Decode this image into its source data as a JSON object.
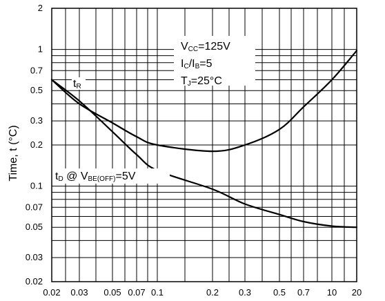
{
  "chart_data": {
    "type": "line",
    "title": "",
    "xlabel": "",
    "ylabel": "Time, t (°C)",
    "xscale": "categorical-log-like",
    "yscale": "log",
    "ylim": [
      0.02,
      2
    ],
    "grid": true,
    "x_ticks": [
      "0.02",
      "0.03",
      "0.05",
      "0.07",
      "0.1",
      "0.2",
      "0.3",
      "0.5",
      "0.7",
      "10",
      "20"
    ],
    "y_ticks": [
      "0.02",
      "0.03",
      "0.05",
      "0.07",
      "0.1",
      "0.2",
      "0.3",
      "0.5",
      "0.7",
      "1",
      "2"
    ],
    "conditions": {
      "vcc": {
        "main": "V",
        "sub": "CC",
        "rest": "=125V"
      },
      "ratio": {
        "a": "I",
        "a_sub": "C",
        "mid": "/I",
        "b_sub": "B",
        "rest": "=5"
      },
      "tj": {
        "main": "T",
        "sub": "J",
        "rest": "=25°C"
      }
    },
    "series": [
      {
        "label": {
          "main": "t",
          "sub": "R"
        },
        "x": [
          "0.02",
          "0.03",
          "0.05",
          "0.07",
          "0.1",
          "0.2",
          "0.3",
          "0.5",
          "0.7",
          "10",
          "20"
        ],
        "values": [
          0.6,
          0.4,
          0.29,
          0.23,
          0.2,
          0.18,
          0.2,
          0.26,
          0.38,
          0.6,
          0.98
        ]
      },
      {
        "label": {
          "main": "t",
          "sub": "D",
          "mid": " @ V",
          "sub2": "BE(OFF)",
          "rest": "=5V"
        },
        "x": [
          "0.02",
          "0.03",
          "0.05",
          "0.07",
          "0.1",
          "0.2",
          "0.3",
          "0.5",
          "0.7",
          "10",
          "20"
        ],
        "values": [
          0.6,
          0.42,
          0.25,
          0.17,
          0.13,
          0.095,
          0.074,
          0.062,
          0.055,
          0.051,
          0.05
        ]
      }
    ]
  }
}
